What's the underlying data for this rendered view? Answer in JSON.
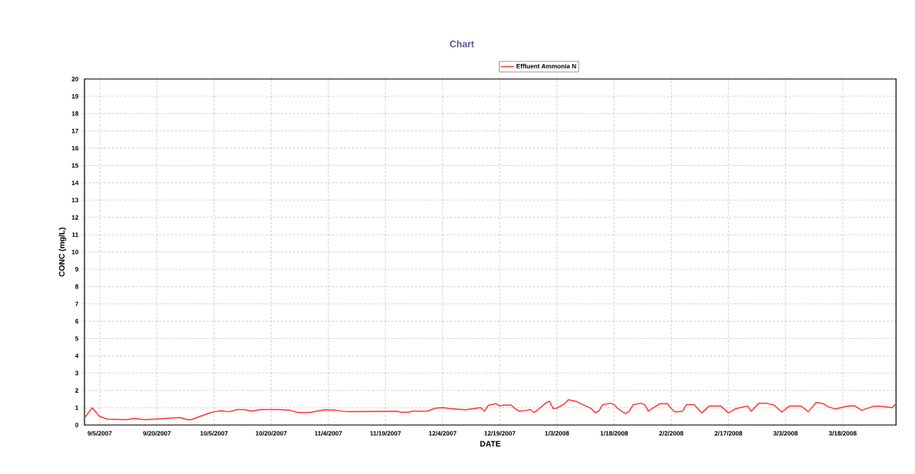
{
  "chart_data": {
    "type": "line",
    "title": "Chart",
    "xlabel": "DATE",
    "ylabel": "CONC (mg/L)",
    "x": [
      "2007-09-01",
      "2007-09-03",
      "2007-09-05",
      "2007-09-07",
      "2007-09-12",
      "2007-09-14",
      "2007-09-17",
      "2007-09-22",
      "2007-09-26",
      "2007-09-28",
      "2007-09-29",
      "2007-10-02",
      "2007-10-04",
      "2007-10-05",
      "2007-10-07",
      "2007-10-09",
      "2007-10-11",
      "2007-10-13",
      "2007-10-15",
      "2007-10-17",
      "2007-10-22",
      "2007-10-25",
      "2007-10-27",
      "2007-10-30",
      "2007-11-03",
      "2007-11-06",
      "2007-11-09",
      "2007-11-22",
      "2007-11-23",
      "2007-11-25",
      "2007-11-26",
      "2007-11-30",
      "2007-12-02",
      "2007-12-04",
      "2007-12-06",
      "2007-12-10",
      "2007-12-14",
      "2007-12-15",
      "2007-12-16",
      "2007-12-18",
      "2007-12-19",
      "2007-12-20",
      "2007-12-22",
      "2007-12-23",
      "2007-12-24",
      "2007-12-26",
      "2007-12-27",
      "2007-12-28",
      "2007-12-29",
      "2007-12-31",
      "2008-01-01",
      "2008-01-02",
      "2008-01-03",
      "2008-01-05",
      "2008-01-06",
      "2008-01-08",
      "2008-01-09",
      "2008-01-12",
      "2008-01-13",
      "2008-01-14",
      "2008-01-15",
      "2008-01-17",
      "2008-01-18",
      "2008-01-19",
      "2008-01-21",
      "2008-01-22",
      "2008-01-23",
      "2008-01-25",
      "2008-01-26",
      "2008-01-27",
      "2008-01-28",
      "2008-01-30",
      "2008-02-01",
      "2008-02-02",
      "2008-02-03",
      "2008-02-05",
      "2008-02-06",
      "2008-02-08",
      "2008-02-10",
      "2008-02-12",
      "2008-02-15",
      "2008-02-17",
      "2008-02-19",
      "2008-02-22",
      "2008-02-23",
      "2008-02-25",
      "2008-02-27",
      "2008-02-29",
      "2008-03-02",
      "2008-03-04",
      "2008-03-07",
      "2008-03-09",
      "2008-03-11",
      "2008-03-13",
      "2008-03-14",
      "2008-03-16",
      "2008-03-19",
      "2008-03-21",
      "2008-03-23",
      "2008-03-26",
      "2008-03-28",
      "2008-03-31",
      "2008-04-01"
    ],
    "series": [
      {
        "name": "Effluent Ammonia N",
        "color": "#ff3b3b",
        "values": [
          0.4,
          1.0,
          0.49,
          0.34,
          0.31,
          0.38,
          0.31,
          0.38,
          0.43,
          0.31,
          0.31,
          0.55,
          0.71,
          0.77,
          0.82,
          0.77,
          0.89,
          0.89,
          0.8,
          0.89,
          0.89,
          0.85,
          0.72,
          0.72,
          0.88,
          0.85,
          0.77,
          0.8,
          0.74,
          0.74,
          0.8,
          0.8,
          0.97,
          1.0,
          0.95,
          0.88,
          1.0,
          0.8,
          1.14,
          1.23,
          1.1,
          1.15,
          1.15,
          0.95,
          0.8,
          0.85,
          0.9,
          0.72,
          0.88,
          1.26,
          1.38,
          0.95,
          0.98,
          1.23,
          1.46,
          1.37,
          1.26,
          0.95,
          0.72,
          0.8,
          1.18,
          1.26,
          1.18,
          0.95,
          0.65,
          0.8,
          1.18,
          1.26,
          1.18,
          0.8,
          0.95,
          1.23,
          1.23,
          0.95,
          0.75,
          0.8,
          1.18,
          1.18,
          0.7,
          1.1,
          1.1,
          0.7,
          0.95,
          1.1,
          0.8,
          1.26,
          1.26,
          1.15,
          0.74,
          1.1,
          1.1,
          0.77,
          1.3,
          1.23,
          1.08,
          0.92,
          1.08,
          1.12,
          0.85,
          1.08,
          1.08,
          1.0,
          1.23
        ]
      }
    ],
    "xlim": [
      "2007-09-01",
      "2008-04-01"
    ],
    "xticks": [
      {
        "value": "2007-09-05",
        "label": "9/5/2007"
      },
      {
        "value": "2007-09-20",
        "label": "9/20/2007"
      },
      {
        "value": "2007-10-05",
        "label": "10/5/2007"
      },
      {
        "value": "2007-10-20",
        "label": "10/20/2007"
      },
      {
        "value": "2007-11-04",
        "label": "11/4/2007"
      },
      {
        "value": "2007-11-19",
        "label": "11/19/2007"
      },
      {
        "value": "2007-12-04",
        "label": "12/4/2007"
      },
      {
        "value": "2007-12-19",
        "label": "12/19/2007"
      },
      {
        "value": "2008-01-03",
        "label": "1/3/2008"
      },
      {
        "value": "2008-01-18",
        "label": "1/18/2008"
      },
      {
        "value": "2008-02-02",
        "label": "2/2/2008"
      },
      {
        "value": "2008-02-17",
        "label": "2/17/2008"
      },
      {
        "value": "2008-03-03",
        "label": "3/3/2008"
      },
      {
        "value": "2008-03-18",
        "label": "3/18/2008"
      }
    ],
    "ylim": [
      0,
      20
    ],
    "yticks": [
      0,
      1,
      2,
      3,
      4,
      5,
      6,
      7,
      8,
      9,
      10,
      11,
      12,
      13,
      14,
      15,
      16,
      17,
      18,
      19,
      20
    ],
    "grid": true,
    "legend": "top",
    "marker": "none",
    "line_style": "solid"
  }
}
